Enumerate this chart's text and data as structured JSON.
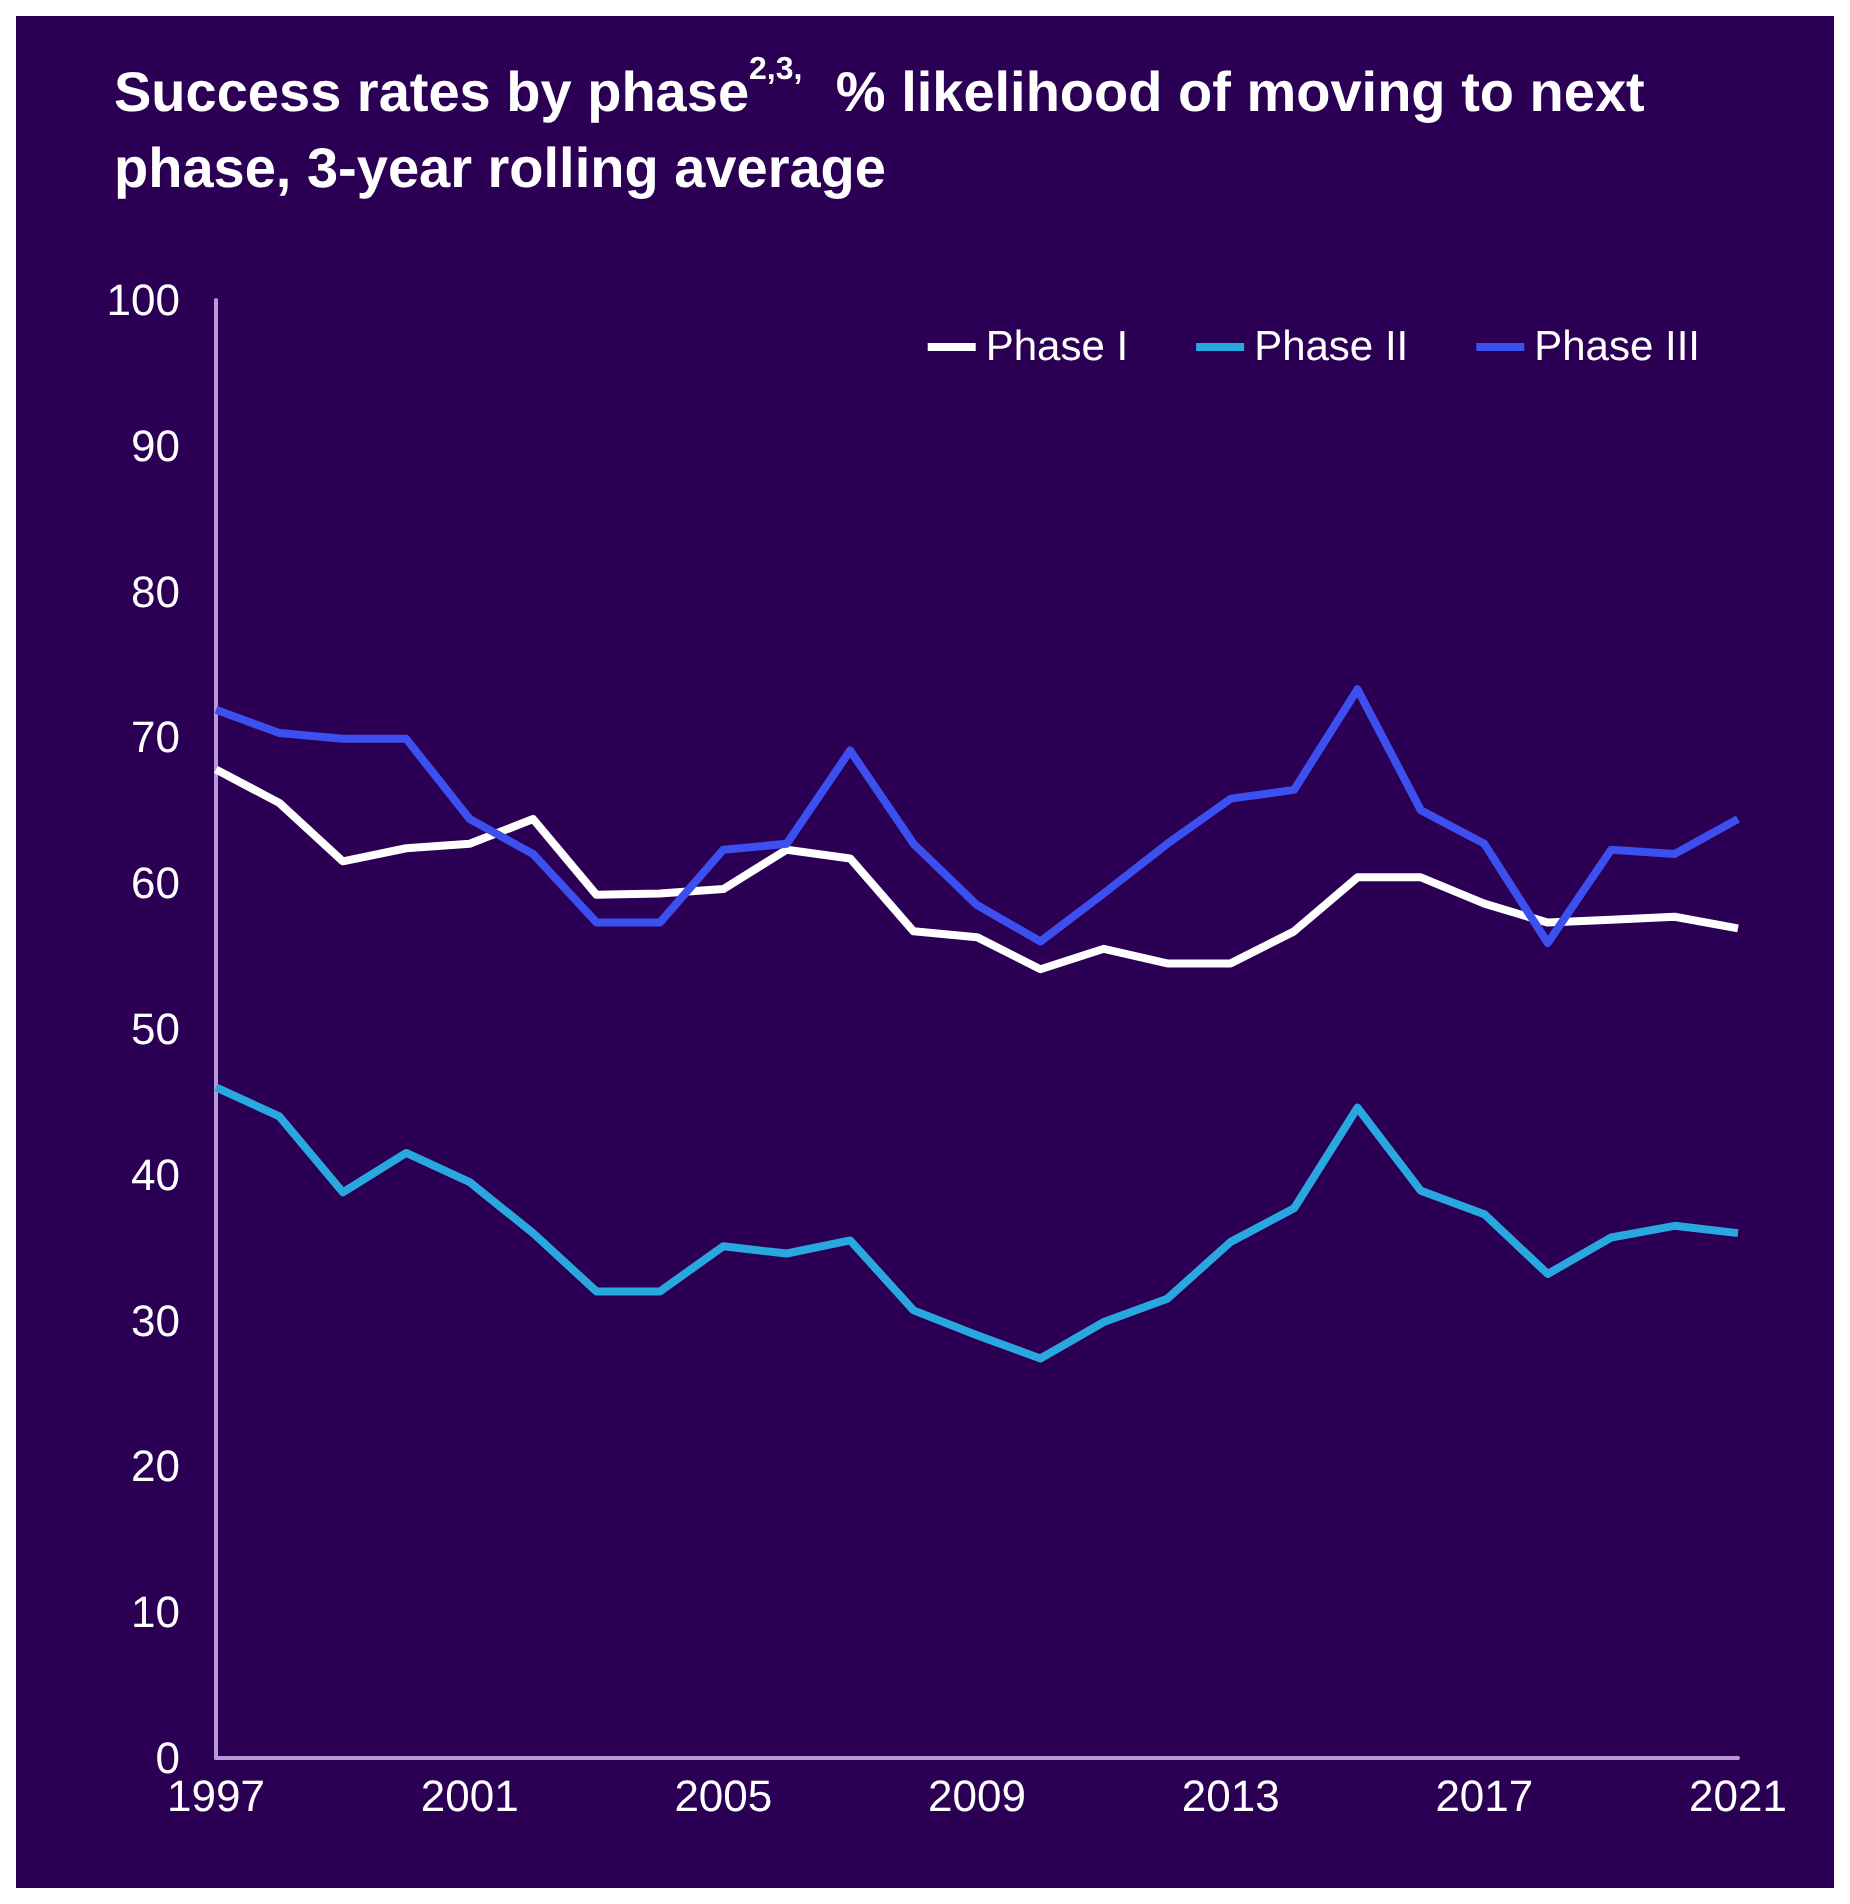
{
  "chart_data": {
    "type": "line",
    "title": "Success rates by phase$^{2,3,}$ % likelihood of moving to next phase, 3-year rolling average",
    "x": [
      1997,
      1998,
      1999,
      2000,
      2001,
      2002,
      2003,
      2004,
      2005,
      2006,
      2007,
      2008,
      2009,
      2010,
      2011,
      2012,
      2013,
      2014,
      2015,
      2016,
      2017,
      2018,
      2019,
      2020,
      2021
    ],
    "series": [
      {
        "name": "Phase I",
        "color": "#ffffff",
        "values": [
          67.8,
          65.5,
          61.5,
          62.4,
          62.7,
          64.4,
          59.2,
          59.3,
          59.6,
          62.3,
          61.7,
          56.7,
          56.3,
          54.1,
          55.5,
          54.5,
          54.5,
          56.7,
          60.4,
          60.4,
          58.6,
          57.3,
          57.5,
          57.7,
          56.9
        ]
      },
      {
        "name": "Phase II",
        "color": "#29a8e0",
        "values": [
          46.0,
          44.0,
          38.8,
          41.5,
          39.5,
          36.0,
          32.0,
          32.0,
          35.1,
          34.6,
          35.5,
          30.7,
          29.0,
          27.4,
          29.9,
          31.5,
          35.4,
          37.7,
          44.6,
          38.9,
          37.3,
          33.2,
          35.7,
          36.5,
          36.0
        ]
      },
      {
        "name": "Phase III",
        "color": "#3c50f0",
        "values": [
          71.9,
          70.3,
          69.9,
          69.9,
          64.4,
          62.0,
          57.3,
          57.3,
          62.3,
          62.7,
          69.1,
          62.7,
          58.5,
          56.0,
          59.3,
          62.7,
          65.8,
          66.4,
          73.3,
          65.0,
          62.7,
          55.9,
          62.3,
          62.0,
          64.4
        ]
      }
    ],
    "xlim": [
      1997,
      2021
    ],
    "xticks": [
      1997,
      2001,
      2005,
      2009,
      2013,
      2017,
      2021
    ],
    "ylim": [
      0,
      100
    ],
    "yticks": [
      0,
      10,
      20,
      30,
      40,
      50,
      60,
      70,
      80,
      90,
      100
    ],
    "grid": false,
    "legend": "top right"
  }
}
